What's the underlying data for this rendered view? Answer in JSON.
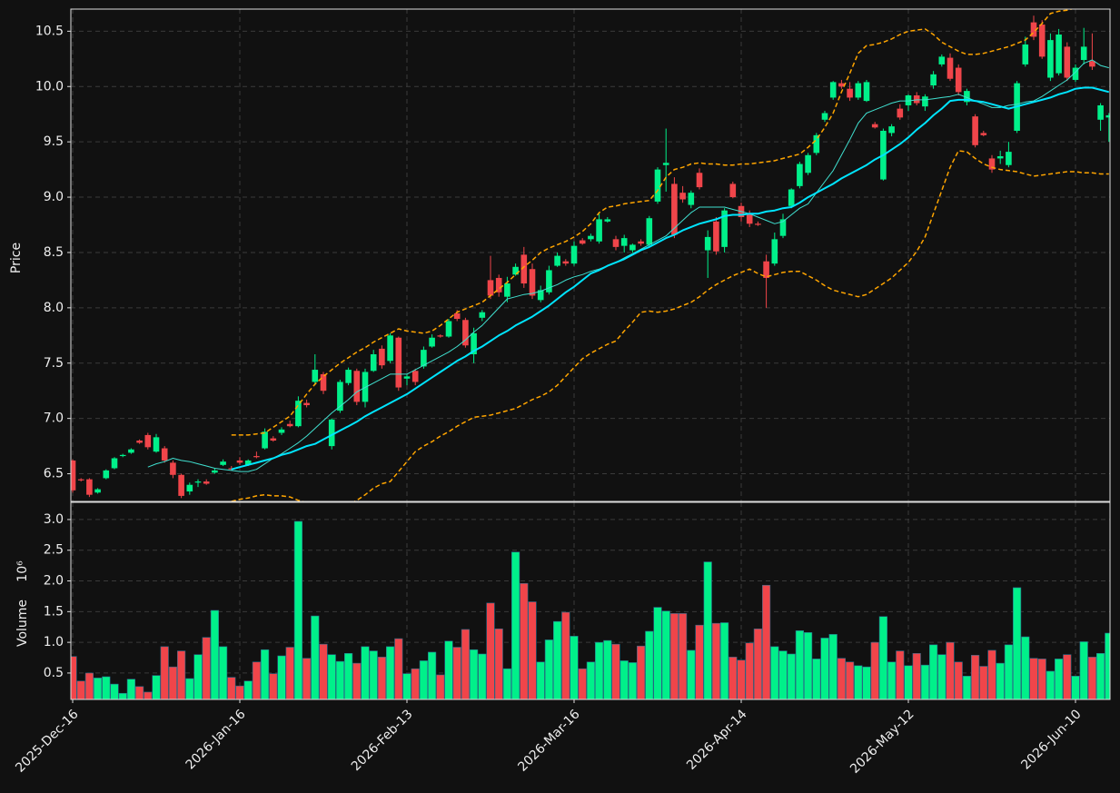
{
  "chart_data": {
    "type": "candlestick",
    "ylabel": "Price",
    "categories": [
      "2025-Dec-16",
      null,
      null,
      null,
      null,
      null,
      null,
      null,
      null,
      null,
      null,
      null,
      null,
      null,
      null,
      null,
      null,
      null,
      null,
      null,
      "2026-Jan-16",
      null,
      null,
      null,
      null,
      null,
      null,
      null,
      null,
      null,
      null,
      null,
      null,
      null,
      null,
      null,
      null,
      null,
      null,
      null,
      "2026-Feb-13",
      null,
      null,
      null,
      null,
      null,
      null,
      null,
      null,
      null,
      null,
      null,
      null,
      null,
      null,
      null,
      null,
      null,
      null,
      null,
      "2026-Mar-16",
      null,
      null,
      null,
      null,
      null,
      null,
      null,
      null,
      null,
      null,
      null,
      null,
      null,
      null,
      null,
      null,
      null,
      null,
      null,
      "2026-Apr-14",
      null,
      null,
      null,
      null,
      null,
      null,
      null,
      null,
      null,
      null,
      null,
      null,
      null,
      null,
      null,
      null,
      null,
      null,
      null,
      "2026-May-12",
      null,
      null,
      null,
      null,
      null,
      null,
      null,
      null,
      null,
      null,
      null,
      null,
      null,
      null,
      null,
      null,
      null,
      null,
      null,
      "2026-Jun-10",
      null,
      null,
      null,
      null
    ],
    "open": [
      6.62,
      6.45,
      6.45,
      6.33,
      6.46,
      6.55,
      6.66,
      6.69,
      6.8,
      6.85,
      6.7,
      6.73,
      6.6,
      6.49,
      6.34,
      6.42,
      6.43,
      6.51,
      6.58,
      6.55,
      6.62,
      6.58,
      6.66,
      6.73,
      6.82,
      6.87,
      6.95,
      6.93,
      7.14,
      7.33,
      7.4,
      6.75,
      7.07,
      7.32,
      7.43,
      7.15,
      7.43,
      7.63,
      7.52,
      7.73,
      7.36,
      7.43,
      7.47,
      7.65,
      7.75,
      7.74,
      7.95,
      7.89,
      7.58,
      7.91,
      8.25,
      8.27,
      8.1,
      8.3,
      8.48,
      8.35,
      8.07,
      8.14,
      8.38,
      8.42,
      8.4,
      8.61,
      8.62,
      8.6,
      8.78,
      8.62,
      8.56,
      8.52,
      8.6,
      8.57,
      8.96,
      9.29,
      9.12,
      9.04,
      8.93,
      9.22,
      8.52,
      8.78,
      8.55,
      9.12,
      8.92,
      8.85,
      8.76,
      8.42,
      8.4,
      8.65,
      8.92,
      9.1,
      9.22,
      9.4,
      9.7,
      9.9,
      10.03,
      9.98,
      9.9,
      9.87,
      9.66,
      9.16,
      9.58,
      9.8,
      9.83,
      9.92,
      9.82,
      10.01,
      10.2,
      10.26,
      10.17,
      9.86,
      9.73,
      9.58,
      9.35,
      9.35,
      9.29,
      9.6,
      10.2,
      10.58,
      10.56,
      10.08,
      10.12,
      10.36,
      10.06,
      10.24,
      10.23,
      9.7,
      9.72
    ],
    "high": [
      6.63,
      6.46,
      6.46,
      6.37,
      6.54,
      6.65,
      6.68,
      6.73,
      6.81,
      6.87,
      6.86,
      6.75,
      6.62,
      6.5,
      6.42,
      6.45,
      6.45,
      6.55,
      6.63,
      6.57,
      6.65,
      6.63,
      6.7,
      6.91,
      6.84,
      6.92,
      6.98,
      7.2,
      7.17,
      7.58,
      7.42,
      7.0,
      7.35,
      7.46,
      7.45,
      7.45,
      7.62,
      7.66,
      7.77,
      7.74,
      7.4,
      7.45,
      7.65,
      7.76,
      7.76,
      7.9,
      7.98,
      7.91,
      7.82,
      7.98,
      8.47,
      8.3,
      8.28,
      8.4,
      8.55,
      8.4,
      8.2,
      8.38,
      8.5,
      8.44,
      8.6,
      8.63,
      8.67,
      8.85,
      8.82,
      8.65,
      8.66,
      8.58,
      8.62,
      8.83,
      9.27,
      9.62,
      9.18,
      9.1,
      9.06,
      9.26,
      8.7,
      8.82,
      8.9,
      9.14,
      8.95,
      8.88,
      8.78,
      8.48,
      8.68,
      8.85,
      9.08,
      9.32,
      9.4,
      9.58,
      9.78,
      10.05,
      10.06,
      10.04,
      10.05,
      10.06,
      9.68,
      9.62,
      9.66,
      9.84,
      9.93,
      9.95,
      9.93,
      10.14,
      10.29,
      10.3,
      10.2,
      9.98,
      9.75,
      9.6,
      9.38,
      9.42,
      9.5,
      10.05,
      10.45,
      10.64,
      10.6,
      10.48,
      10.52,
      10.4,
      10.2,
      10.53,
      10.48,
      9.85,
      9.76
    ],
    "low": [
      6.33,
      6.43,
      6.29,
      6.32,
      6.45,
      6.54,
      6.65,
      6.68,
      6.77,
      6.72,
      6.69,
      6.6,
      6.46,
      6.28,
      6.31,
      6.38,
      6.4,
      6.5,
      6.57,
      6.53,
      6.58,
      6.57,
      6.64,
      6.72,
      6.79,
      6.85,
      6.92,
      6.92,
      7.1,
      7.3,
      7.22,
      6.72,
      7.05,
      7.3,
      7.12,
      7.1,
      7.42,
      7.45,
      7.5,
      7.25,
      7.3,
      7.3,
      7.45,
      7.64,
      7.73,
      7.73,
      7.88,
      7.64,
      7.5,
      7.88,
      8.08,
      8.1,
      8.05,
      8.29,
      8.18,
      8.08,
      8.05,
      8.12,
      8.37,
      8.38,
      8.38,
      8.57,
      8.6,
      8.58,
      8.77,
      8.52,
      8.5,
      8.5,
      8.56,
      8.55,
      8.94,
      9.05,
      8.63,
      8.95,
      8.9,
      9.07,
      8.27,
      8.48,
      8.5,
      8.99,
      8.78,
      8.73,
      8.74,
      8.0,
      8.38,
      8.63,
      8.9,
      9.08,
      9.2,
      9.38,
      9.68,
      9.88,
      9.98,
      9.87,
      9.88,
      9.86,
      9.62,
      9.15,
      9.55,
      9.7,
      9.78,
      9.83,
      9.78,
      9.98,
      10.18,
      10.05,
      9.92,
      9.83,
      9.45,
      9.55,
      9.22,
      9.3,
      9.27,
      9.58,
      10.18,
      10.42,
      10.25,
      10.05,
      10.1,
      10.05,
      10.04,
      10.2,
      10.15,
      9.6,
      9.5
    ],
    "close": [
      6.35,
      6.44,
      6.31,
      6.36,
      6.53,
      6.64,
      6.67,
      6.72,
      6.78,
      6.74,
      6.83,
      6.62,
      6.49,
      6.3,
      6.4,
      6.43,
      6.41,
      6.53,
      6.61,
      6.54,
      6.6,
      6.62,
      6.65,
      6.88,
      6.8,
      6.9,
      6.93,
      7.16,
      7.12,
      7.44,
      7.25,
      6.99,
      7.33,
      7.44,
      7.15,
      7.42,
      7.58,
      7.48,
      7.75,
      7.28,
      7.38,
      7.33,
      7.62,
      7.73,
      7.74,
      7.88,
      7.9,
      7.66,
      7.77,
      7.96,
      8.11,
      8.14,
      8.22,
      8.37,
      8.22,
      8.11,
      8.16,
      8.34,
      8.47,
      8.4,
      8.56,
      8.58,
      8.65,
      8.8,
      8.8,
      8.55,
      8.63,
      8.57,
      8.58,
      8.81,
      9.25,
      9.31,
      8.66,
      8.98,
      9.04,
      9.09,
      8.64,
      8.51,
      8.88,
      9.0,
      8.82,
      8.76,
      8.75,
      8.27,
      8.62,
      8.8,
      9.07,
      9.3,
      9.38,
      9.56,
      9.76,
      10.04,
      10.0,
      9.9,
      10.03,
      10.04,
      9.63,
      9.6,
      9.64,
      9.72,
      9.92,
      9.85,
      9.91,
      10.11,
      10.27,
      10.07,
      9.95,
      9.96,
      9.47,
      9.56,
      9.25,
      9.37,
      9.41,
      10.03,
      10.38,
      10.45,
      10.27,
      10.42,
      10.47,
      10.08,
      10.17,
      10.36,
      10.18,
      9.83,
      9.74
    ],
    "up_color": "#00f08a",
    "down_color": "#f0454a",
    "ylim": [
      6.25,
      10.7
    ],
    "yticks": [
      6.5,
      {
        "value": 7,
        "label": "7.0"
      },
      7.5,
      {
        "value": 8,
        "label": "8.0"
      },
      8.5,
      {
        "value": 9,
        "label": "9.0"
      },
      9.5,
      {
        "value": 10,
        "label": "10.0"
      },
      10.5
    ],
    "grid": true,
    "series": [
      {
        "color": "#ffa500",
        "style": "dashed",
        "width": 1.5,
        "values": [
          null,
          null,
          null,
          null,
          null,
          null,
          null,
          null,
          null,
          null,
          null,
          null,
          null,
          null,
          null,
          null,
          null,
          null,
          null,
          6.85,
          6.85,
          6.85,
          6.86,
          6.87,
          6.92,
          6.97,
          7.02,
          7.12,
          7.22,
          7.31,
          7.38,
          7.44,
          7.5,
          7.55,
          7.6,
          7.64,
          7.69,
          7.73,
          7.77,
          7.81,
          7.79,
          7.78,
          7.77,
          7.79,
          7.84,
          7.9,
          7.96,
          7.99,
          8.02,
          8.05,
          8.11,
          8.17,
          8.23,
          8.3,
          8.37,
          8.43,
          8.5,
          8.54,
          8.57,
          8.6,
          8.64,
          8.69,
          8.76,
          8.86,
          8.91,
          8.92,
          8.94,
          8.95,
          8.96,
          8.97,
          9.06,
          9.18,
          9.25,
          9.27,
          9.3,
          9.31,
          9.3,
          9.3,
          9.29,
          9.29,
          9.3,
          9.3,
          9.31,
          9.32,
          9.33,
          9.35,
          9.37,
          9.39,
          9.45,
          9.52,
          9.63,
          9.76,
          9.95,
          10.12,
          10.3,
          10.37,
          10.38,
          10.4,
          10.43,
          10.47,
          10.5,
          10.51,
          10.52,
          10.47,
          10.4,
          10.36,
          10.32,
          10.29,
          10.29,
          10.3,
          10.32,
          10.34,
          10.36,
          10.39,
          10.42,
          10.49,
          10.57,
          10.66,
          10.68,
          10.69,
          10.71,
          10.72,
          10.73,
          10.74,
          10.75
        ]
      },
      {
        "color": "#ffa500",
        "style": "dashed",
        "width": 1.5,
        "values": [
          null,
          null,
          null,
          null,
          null,
          null,
          null,
          null,
          null,
          null,
          null,
          null,
          null,
          null,
          null,
          null,
          null,
          null,
          null,
          6.25,
          6.27,
          6.28,
          6.3,
          6.31,
          6.3,
          6.3,
          6.29,
          6.26,
          6.24,
          6.2,
          6.19,
          6.2,
          6.21,
          6.22,
          6.26,
          6.31,
          6.37,
          6.41,
          6.43,
          6.52,
          6.61,
          6.7,
          6.75,
          6.79,
          6.84,
          6.88,
          6.93,
          6.97,
          7.01,
          7.02,
          7.03,
          7.05,
          7.07,
          7.09,
          7.13,
          7.17,
          7.2,
          7.24,
          7.3,
          7.38,
          7.46,
          7.54,
          7.59,
          7.63,
          7.67,
          7.7,
          7.79,
          7.87,
          7.96,
          7.97,
          7.96,
          7.97,
          7.99,
          8.02,
          8.05,
          8.1,
          8.16,
          8.21,
          8.25,
          8.29,
          8.32,
          8.35,
          8.31,
          8.28,
          8.3,
          8.32,
          8.33,
          8.33,
          8.29,
          8.25,
          8.2,
          8.16,
          8.14,
          8.12,
          8.1,
          8.12,
          8.17,
          8.22,
          8.27,
          8.34,
          8.41,
          8.51,
          8.64,
          8.85,
          9.06,
          9.27,
          9.42,
          9.41,
          9.35,
          9.3,
          9.27,
          9.25,
          9.24,
          9.23,
          9.21,
          9.19,
          9.2,
          9.21,
          9.22,
          9.23,
          9.23,
          9.22,
          9.22,
          9.21,
          9.21
        ]
      },
      {
        "color": "#40e0d0",
        "style": "solid",
        "width": 1,
        "values": [
          null,
          null,
          null,
          null,
          null,
          null,
          null,
          null,
          null,
          6.56,
          6.59,
          6.61,
          6.64,
          6.62,
          6.61,
          6.59,
          6.57,
          6.55,
          6.54,
          6.53,
          6.52,
          6.52,
          6.54,
          6.59,
          6.64,
          6.68,
          6.73,
          6.78,
          6.84,
          6.91,
          6.98,
          7.05,
          7.11,
          7.17,
          7.24,
          7.28,
          7.32,
          7.36,
          7.4,
          7.4,
          7.4,
          7.44,
          7.48,
          7.52,
          7.56,
          7.6,
          7.65,
          7.71,
          7.78,
          7.84,
          7.92,
          8.0,
          8.08,
          8.1,
          8.12,
          8.13,
          8.15,
          8.18,
          8.21,
          8.25,
          8.28,
          8.3,
          8.33,
          8.35,
          8.38,
          8.41,
          8.45,
          8.49,
          8.53,
          8.57,
          8.61,
          8.65,
          8.72,
          8.79,
          8.86,
          8.91,
          8.91,
          8.91,
          8.91,
          8.89,
          8.87,
          8.85,
          8.82,
          8.79,
          8.76,
          8.78,
          8.84,
          8.9,
          8.94,
          9.04,
          9.14,
          9.24,
          9.38,
          9.52,
          9.67,
          9.76,
          9.79,
          9.82,
          9.85,
          9.87,
          9.87,
          9.88,
          9.88,
          9.89,
          9.9,
          9.91,
          9.93,
          9.9,
          9.87,
          9.84,
          9.81,
          9.81,
          9.83,
          9.84,
          9.86,
          9.87,
          9.91,
          9.96,
          10.01,
          10.06,
          10.13,
          10.21,
          10.24,
          10.19,
          10.17
        ]
      },
      {
        "color": "#00e5ff",
        "style": "solid",
        "width": 2,
        "values": [
          null,
          null,
          null,
          null,
          null,
          null,
          null,
          null,
          null,
          null,
          null,
          null,
          null,
          null,
          null,
          null,
          null,
          null,
          null,
          6.54,
          6.56,
          6.58,
          6.6,
          6.62,
          6.64,
          6.67,
          6.69,
          6.72,
          6.75,
          6.77,
          6.81,
          6.85,
          6.89,
          6.93,
          6.97,
          7.02,
          7.06,
          7.1,
          7.14,
          7.18,
          7.22,
          7.27,
          7.32,
          7.37,
          7.42,
          7.47,
          7.52,
          7.56,
          7.61,
          7.65,
          7.7,
          7.75,
          7.79,
          7.84,
          7.88,
          7.92,
          7.97,
          8.02,
          8.08,
          8.14,
          8.19,
          8.25,
          8.31,
          8.34,
          8.38,
          8.41,
          8.44,
          8.48,
          8.52,
          8.55,
          8.59,
          8.63,
          8.66,
          8.7,
          8.73,
          8.76,
          8.78,
          8.8,
          8.83,
          8.84,
          8.84,
          8.85,
          8.85,
          8.87,
          8.88,
          8.9,
          8.91,
          8.95,
          9.0,
          9.04,
          9.08,
          9.12,
          9.17,
          9.21,
          9.25,
          9.29,
          9.34,
          9.38,
          9.43,
          9.48,
          9.54,
          9.61,
          9.67,
          9.74,
          9.8,
          9.87,
          9.88,
          9.88,
          9.87,
          9.86,
          9.84,
          9.82,
          9.8,
          9.82,
          9.84,
          9.86,
          9.88,
          9.9,
          9.93,
          9.95,
          9.98,
          9.99,
          9.99,
          9.97,
          9.95
        ]
      }
    ],
    "volume": {
      "ylabel": "Volume",
      "scale_label": "10⁶",
      "values": [
        0.77,
        0.37,
        0.5,
        0.42,
        0.44,
        0.32,
        0.17,
        0.4,
        0.28,
        0.19,
        0.46,
        0.93,
        0.6,
        0.86,
        0.41,
        0.8,
        1.08,
        1.52,
        0.93,
        0.43,
        0.29,
        0.37,
        0.68,
        0.88,
        0.49,
        0.78,
        0.92,
        2.97,
        0.74,
        1.43,
        0.97,
        0.8,
        0.69,
        0.82,
        0.66,
        0.93,
        0.86,
        0.76,
        0.93,
        1.06,
        0.49,
        0.57,
        0.7,
        0.84,
        0.47,
        1.02,
        0.92,
        1.21,
        0.88,
        0.81,
        1.64,
        1.22,
        0.57,
        2.47,
        1.96,
        1.66,
        0.68,
        1.04,
        1.34,
        1.49,
        1.1,
        0.57,
        0.68,
        1.0,
        1.03,
        0.97,
        0.7,
        0.67,
        0.94,
        1.18,
        1.57,
        1.51,
        1.47,
        1.47,
        0.87,
        1.28,
        2.31,
        1.31,
        1.32,
        0.76,
        0.71,
        0.99,
        1.22,
        1.93,
        0.93,
        0.86,
        0.81,
        1.19,
        1.16,
        0.73,
        1.07,
        1.13,
        0.74,
        0.68,
        0.62,
        0.6,
        1.0,
        1.42,
        0.68,
        0.86,
        0.62,
        0.82,
        0.63,
        0.96,
        0.8,
        1.0,
        0.68,
        0.45,
        0.79,
        0.61,
        0.87,
        0.66,
        0.96,
        1.89,
        1.09,
        0.74,
        0.73,
        0.53,
        0.73,
        0.8,
        0.45,
        1.01,
        0.76,
        0.82,
        1.15
      ],
      "ylim": [
        0.07,
        3.28
      ],
      "yticks": [
        0.5,
        {
          "value": 1,
          "label": "1.0"
        },
        1.5,
        {
          "value": 2,
          "label": "2.0"
        },
        2.5,
        {
          "value": 3,
          "label": "3.0"
        }
      ]
    }
  }
}
